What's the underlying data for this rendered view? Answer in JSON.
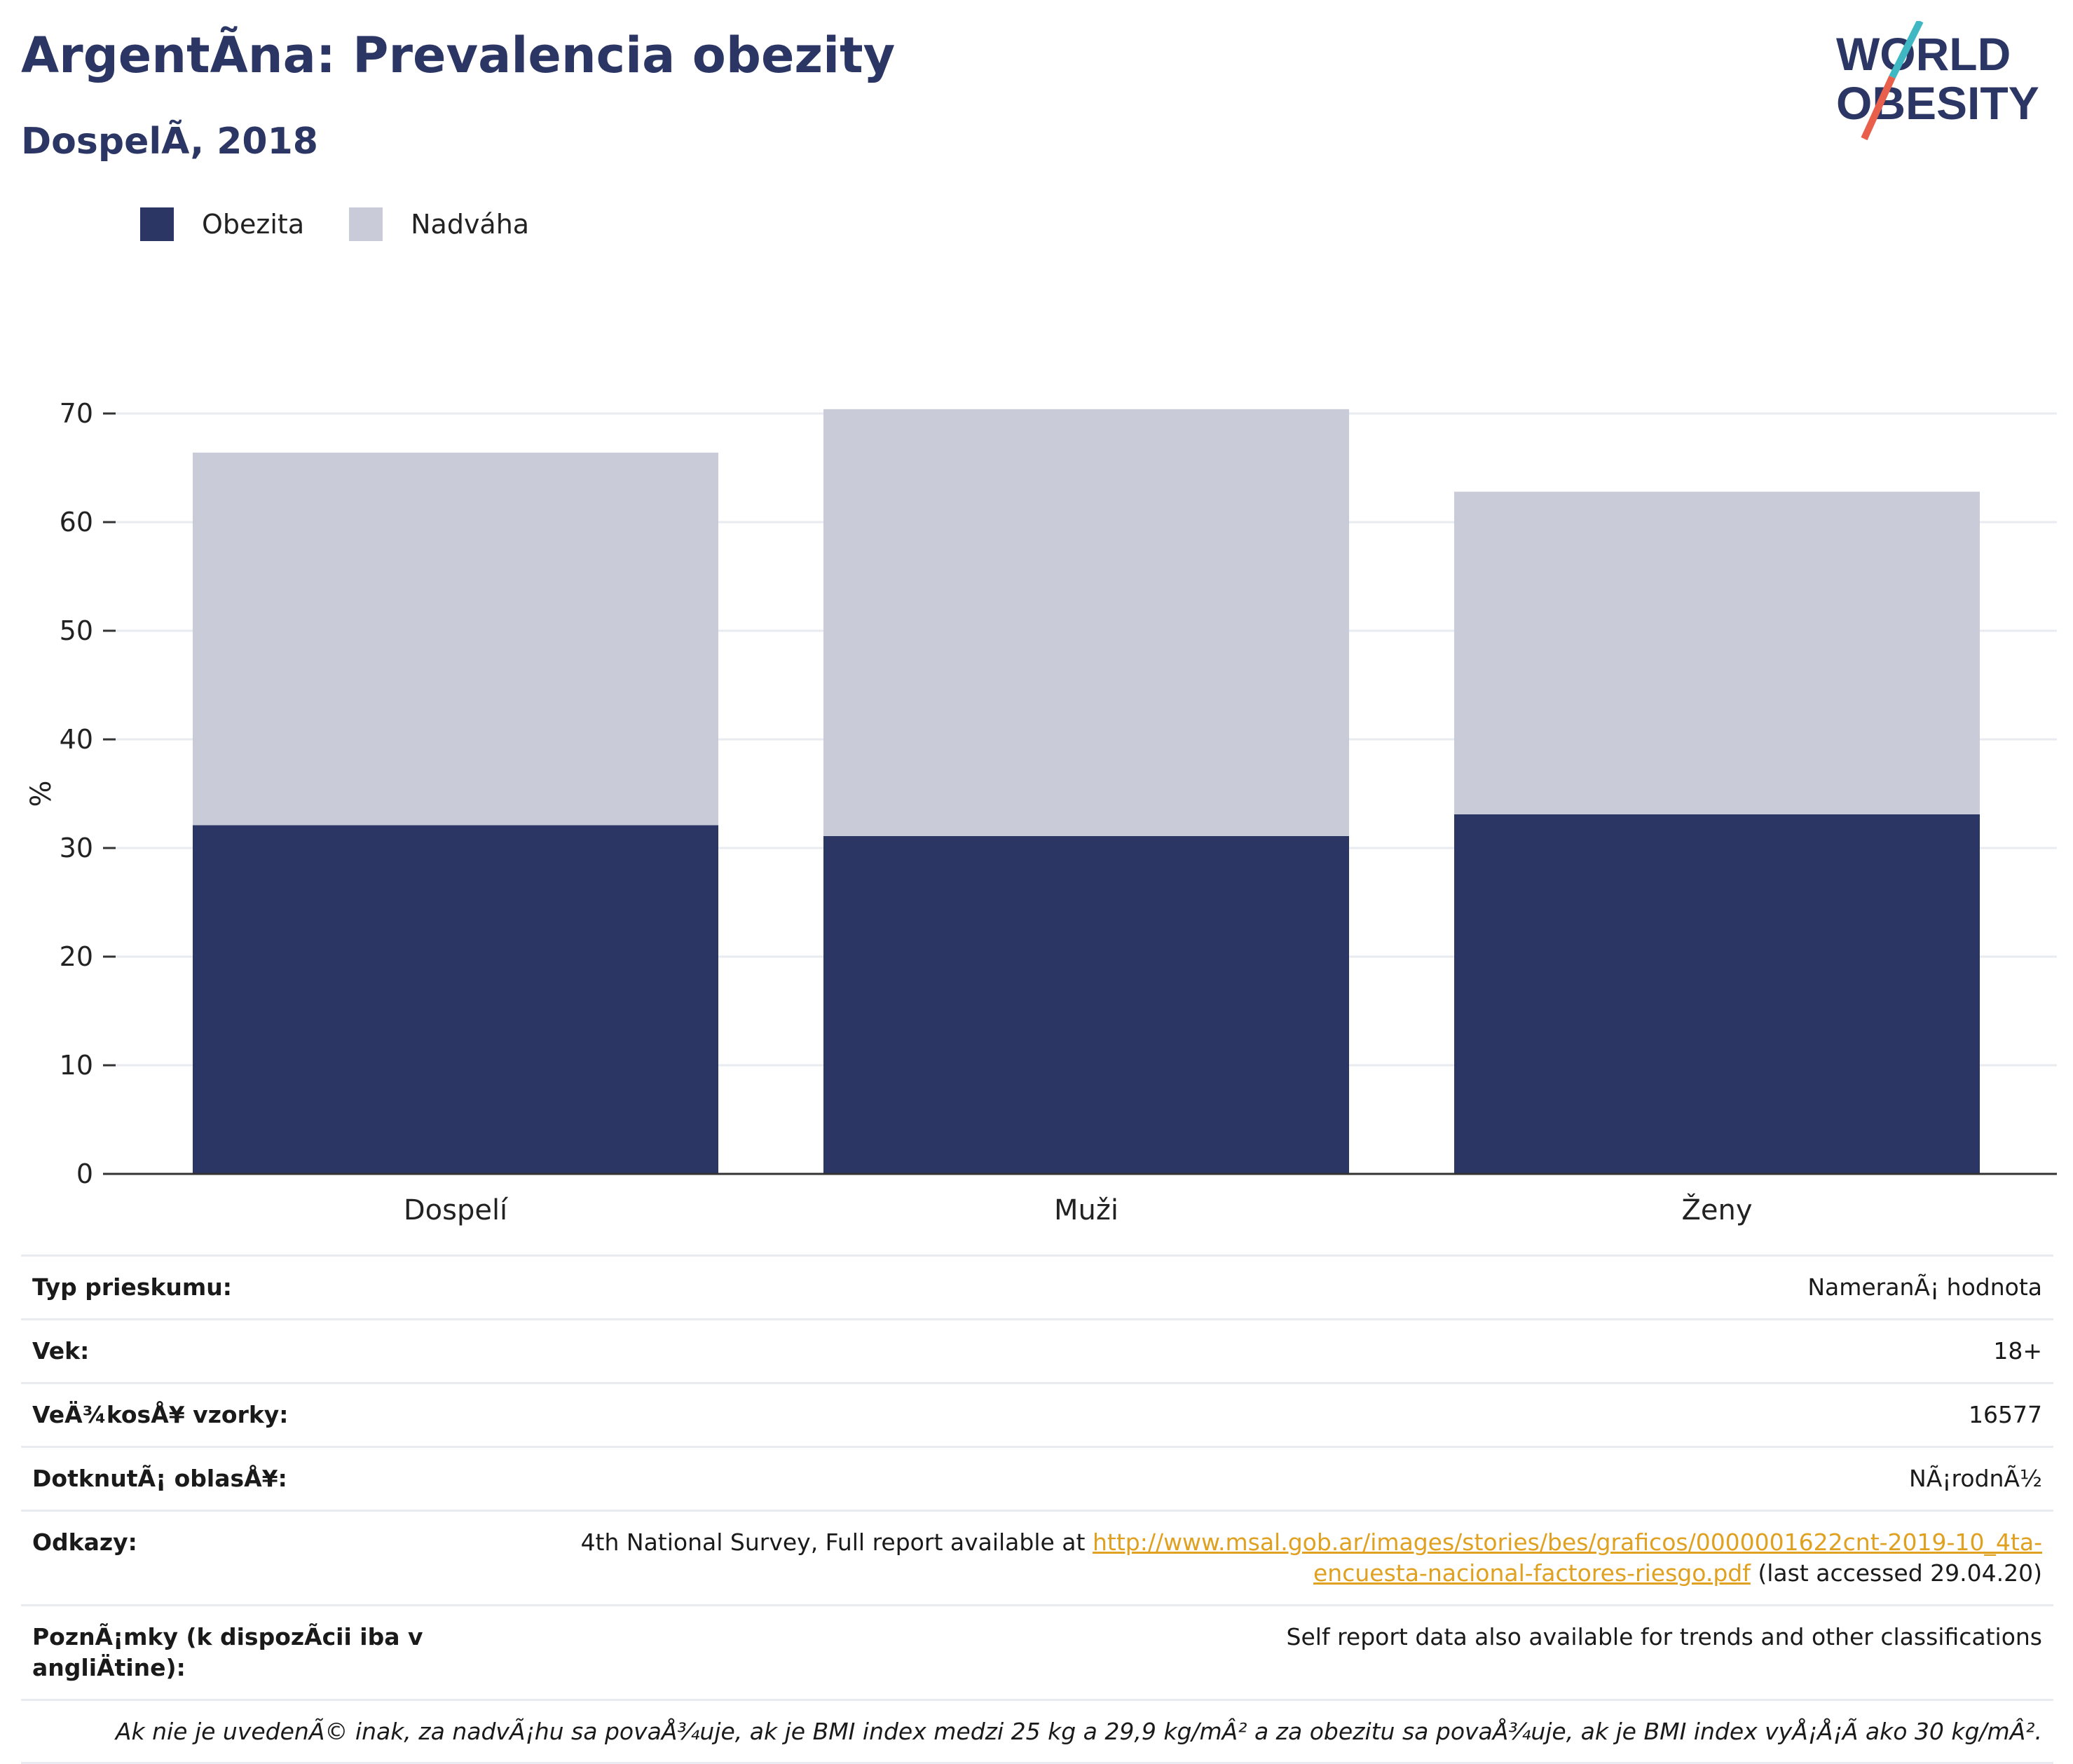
{
  "header": {
    "title": "ArgentÃna: Prevalencia obezity",
    "subtitle": "DospelÃ, 2018"
  },
  "logo": {
    "line1": "WORLD",
    "line2": "OBESITY",
    "colors": {
      "text": "#2b3664",
      "slash_top": "#3fb8c4",
      "slash_bottom": "#e8604c"
    }
  },
  "legend": [
    {
      "label": "Obezita",
      "color": "#2b3664"
    },
    {
      "label": "Nadváha",
      "color": "#c9ccd8"
    }
  ],
  "chart_data": {
    "type": "bar",
    "stacked": true,
    "categories": [
      "Dospelí",
      "Muži",
      "Ženy"
    ],
    "series": [
      {
        "name": "Obezita",
        "color": "#2b3664",
        "values": [
          32.1,
          31.1,
          33.1
        ]
      },
      {
        "name": "Nadváha",
        "color": "#c9ccd8",
        "values": [
          34.3,
          39.3,
          29.7
        ]
      }
    ],
    "ylabel": "%",
    "xlabel": "",
    "ylim": [
      0,
      70
    ],
    "yticks": [
      0,
      10,
      20,
      30,
      40,
      50,
      60,
      70
    ],
    "grid": true,
    "legend_position": "top-left"
  },
  "info_table": [
    {
      "key": "Typ prieskumu:",
      "value": "NameranÃ¡ hodnota"
    },
    {
      "key": "Vek:",
      "value": "18+"
    },
    {
      "key": "VeÄ¾kosÅ¥ vzorky:",
      "value": "16577"
    },
    {
      "key": "DotknutÃ¡ oblasÅ¥:",
      "value": "NÃ¡rodnÃ½"
    }
  ],
  "references": {
    "key": "Odkazy:",
    "prefix": "4th National Survey, Full report available at ",
    "link": "http://www.msal.gob.ar/images/stories/bes/graficos/0000001622cnt-2019-10_4ta-encuesta-nacional-factores-riesgo.pdf",
    "suffix": " (last accessed 29.04.20)"
  },
  "notes": {
    "key": "PoznÃ¡mky (k dispozÃcii iba v angliÄtine):",
    "value": "Self report data also available for trends and other classifications"
  },
  "footnote": "Ak nie je uvedenÃ© inak, za nadvÃ¡hu sa povaÅ¾uje, ak je BMI index medzi 25 kg a 29,9 kg/mÂ² a za obezitu sa povaÅ¾uje, ak je BMI index vyÅ¡Å¡Ã ako 30 kg/mÂ²."
}
